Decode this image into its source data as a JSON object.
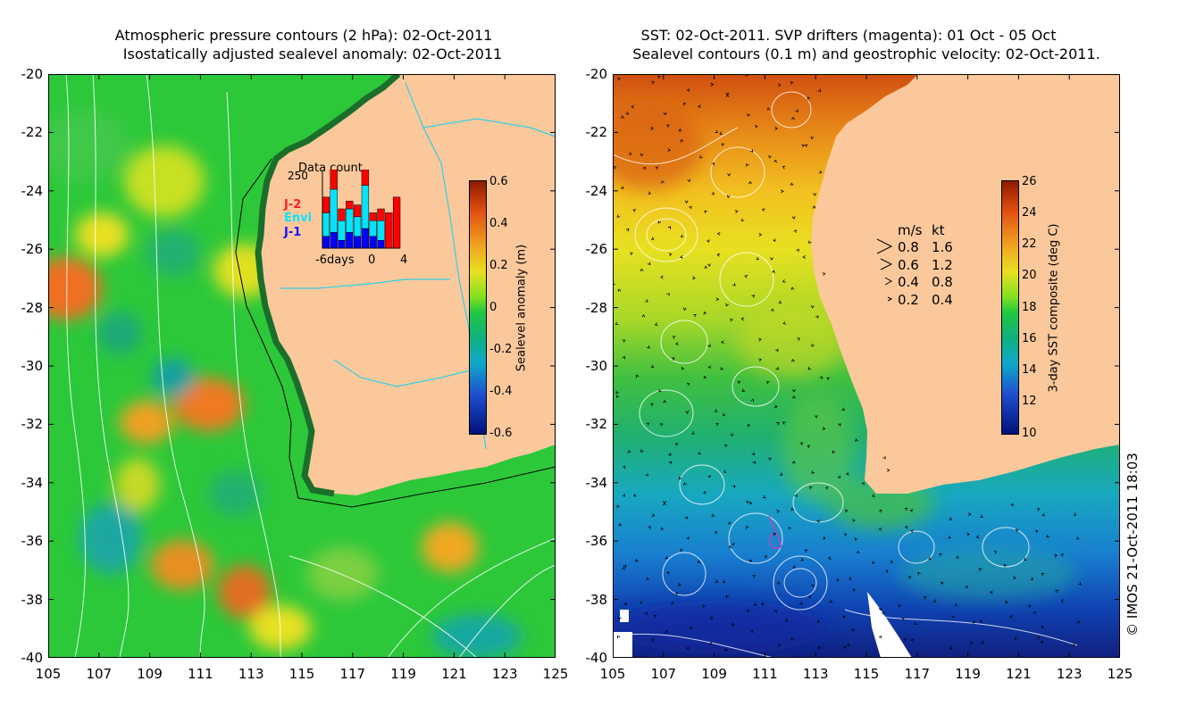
{
  "left_panel": {
    "title_line1": "Atmospheric pressure contours (2 hPa): 02-Oct-2011",
    "title_line2": "Isostatically adjusted sealevel anomaly: 02-Oct-2011",
    "colorbar_label": "Sealevel anomaly (m)",
    "colorbar_ticks": [
      "0.6",
      "0.4",
      "0.2",
      "0",
      "-0.2",
      "-0.4",
      "-0.6"
    ],
    "colors": {
      "land": "#fbc89c",
      "ocean_mid": "#22c83a",
      "coast": "#1a6e2a"
    }
  },
  "right_panel": {
    "title_line1": "SST: 02-Oct-2011. SVP drifters (magenta): 01 Oct - 05 Oct",
    "title_line2": "Sealevel contours (0.1 m) and geostrophic velocity: 02-Oct-2011.",
    "colorbar_label": "3-day SST composite (deg C)",
    "colorbar_ticks": [
      "26",
      "24",
      "22",
      "20",
      "18",
      "16",
      "14",
      "12",
      "10"
    ],
    "velocity_legend": {
      "header_ms": "m/s",
      "header_kt": "kt",
      "rows": [
        {
          "ms": "0.8",
          "kt": "1.6"
        },
        {
          "ms": "0.6",
          "kt": "1.2"
        },
        {
          "ms": "0.4",
          "kt": "0.8"
        },
        {
          "ms": "0.2",
          "kt": "0.4"
        }
      ]
    }
  },
  "data_count_inset": {
    "title": "Data count",
    "ymax_label": "250",
    "legend": [
      {
        "name": "J-2",
        "color": "#ff0000"
      },
      {
        "name": "Envi",
        "color": "#00e5ff"
      },
      {
        "name": "J-1",
        "color": "#0000ff"
      }
    ],
    "xlabels": [
      "-6days",
      "0",
      "4"
    ],
    "bars": [
      {
        "j1": 0.15,
        "envi": 0.3,
        "j2": 0.2
      },
      {
        "j1": 0.2,
        "envi": 0.55,
        "j2": 0.25
      },
      {
        "j1": 0.1,
        "envi": 0.25,
        "j2": 0.15
      },
      {
        "j1": 0.2,
        "envi": 0.3,
        "j2": 0.1
      },
      {
        "j1": 0.15,
        "envi": 0.25,
        "j2": 0.15
      },
      {
        "j1": 0.25,
        "envi": 0.55,
        "j2": 0.2
      },
      {
        "j1": 0.15,
        "envi": 0.2,
        "j2": 0.1
      },
      {
        "j1": 0.1,
        "envi": 0.25,
        "j2": 0.15
      },
      {
        "j1": 0.0,
        "envi": 0.0,
        "j2": 0.45
      },
      {
        "j1": 0.0,
        "envi": 0.0,
        "j2": 0.65
      }
    ]
  },
  "axes": {
    "y_ticks": [
      "-20",
      "-22",
      "-24",
      "-26",
      "-28",
      "-30",
      "-32",
      "-34",
      "-36",
      "-38",
      "-40"
    ],
    "x_ticks": [
      "105",
      "107",
      "109",
      "111",
      "113",
      "115",
      "117",
      "119",
      "121",
      "123",
      "125"
    ]
  },
  "credit": "© IMOS 21-Oct-2011 18:03"
}
